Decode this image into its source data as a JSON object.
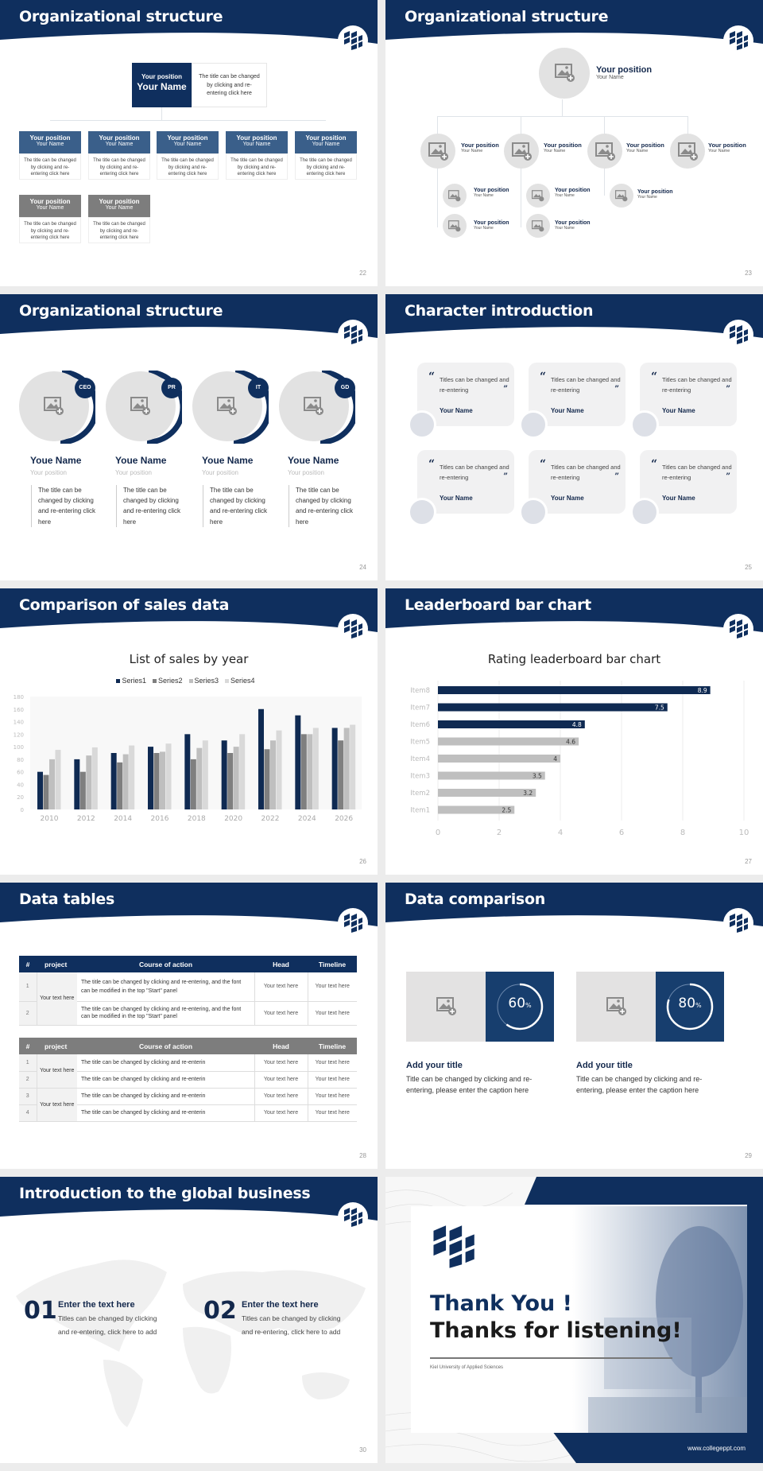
{
  "colors": {
    "navy": "#0f2f5e",
    "steel_blue": "#3a5f8a",
    "gray_header": "#7d7d7d",
    "placeholder_gray": "#e2e2e2",
    "ring_panel": "#173e6e"
  },
  "slides": [
    {
      "number": "22",
      "title": "Organizational structure",
      "top": {
        "position": "Your position",
        "name": "Your Name",
        "description": "The title can be changed by clicking and re-entering click here"
      },
      "cards": [
        {
          "position": "Your position",
          "name": "Your Name",
          "description": "The title can be changed by clicking and re-entering click here",
          "style": "blue"
        },
        {
          "position": "Your position",
          "name": "Your Name",
          "description": "The title can be changed by clicking and re-entering click here",
          "style": "blue"
        },
        {
          "position": "Your position",
          "name": "Your Name",
          "description": "The title can be changed by clicking and re-entering click here",
          "style": "blue"
        },
        {
          "position": "Your position",
          "name": "Your Name",
          "description": "The title can be changed by clicking and re-entering click here",
          "style": "blue"
        },
        {
          "position": "Your position",
          "name": "Your Name",
          "description": "The title can be changed by clicking and re-entering click here",
          "style": "blue"
        },
        {
          "position": "Your position",
          "name": "Your Name",
          "description": "The title can be changed by clicking and re-entering click here",
          "style": "gray"
        },
        {
          "position": "Your position",
          "name": "Your Name",
          "description": "The title can be changed by clicking and re-entering click here",
          "style": "gray"
        }
      ]
    },
    {
      "number": "23",
      "title": "Organizational structure",
      "top": {
        "position": "Your position",
        "name": "Your Name"
      },
      "level2": [
        {
          "position": "Your position",
          "name": "Your Name"
        },
        {
          "position": "Your position",
          "name": "Your Name"
        },
        {
          "position": "Your position",
          "name": "Your Name"
        },
        {
          "position": "Your position",
          "name": "Your Name"
        }
      ],
      "level3": [
        {
          "position": "Your position",
          "name": "Your Name"
        },
        {
          "position": "Your position",
          "name": "Your Name"
        },
        {
          "position": "Your position",
          "name": "Your Name"
        },
        {
          "position": "Your position",
          "name": "Your Name"
        },
        {
          "position": "Your position",
          "name": "Your Name"
        }
      ]
    },
    {
      "number": "24",
      "title": "Organizational structure",
      "people": [
        {
          "badge": "CEO",
          "name": "Youe Name",
          "position": "Your position",
          "description": "The title can be changed by clicking and re-entering click here"
        },
        {
          "badge": "PR",
          "name": "Youe Name",
          "position": "Your position",
          "description": "The title can be changed by clicking and re-entering click here"
        },
        {
          "badge": "IT",
          "name": "Youe Name",
          "position": "Your position",
          "description": "The title can be changed by clicking and re-entering click here"
        },
        {
          "badge": "GD",
          "name": "Youe Name",
          "position": "Your position",
          "description": "The title can be changed by clicking and re-entering click here"
        }
      ]
    },
    {
      "number": "25",
      "title": "Character introduction",
      "quotes": [
        {
          "text": "Titles can be changed and re-entering",
          "name": "Your Name"
        },
        {
          "text": "Titles can be changed and re-entering",
          "name": "Your Name"
        },
        {
          "text": "Titles can be changed and re-entering",
          "name": "Your Name"
        },
        {
          "text": "Titles can be changed and re-entering",
          "name": "Your Name"
        },
        {
          "text": "Titles can be changed and re-entering",
          "name": "Your Name"
        },
        {
          "text": "Titles can be changed and re-entering",
          "name": "Your Name"
        }
      ],
      "open_quote": "“",
      "close_quote": "”"
    },
    {
      "number": "26",
      "title": "Comparison of sales data",
      "chart_title": "List of sales by year",
      "legend": [
        "Series1",
        "Series2",
        "Series3",
        "Series4"
      ]
    },
    {
      "number": "27",
      "title": "Leaderboard bar chart",
      "chart_title": "Rating leaderboard bar chart"
    },
    {
      "number": "28",
      "title": "Data tables",
      "table1": {
        "headers": [
          "#",
          "project",
          "Course of action",
          "Head",
          "Timeline"
        ],
        "project": "Your text here",
        "rows": [
          {
            "num": "1",
            "action": "The title can be changed by clicking and re-entering, and the font can be modified in the top \"Start\" panel",
            "head": "Your text here",
            "timeline": "Your text here"
          },
          {
            "num": "2",
            "action": "The title can be changed by clicking and re-entering, and the font can be modified in the top \"Start\" panel",
            "head": "Your text here",
            "timeline": "Your text here"
          }
        ]
      },
      "table2": {
        "headers": [
          "#",
          "project",
          "Course of action",
          "Head",
          "Timeline"
        ],
        "projects": [
          "Your text here",
          "Your text here"
        ],
        "rows": [
          {
            "num": "1",
            "action": "The title can be changed by clicking and re-enterin",
            "head": "Your text here",
            "timeline": "Your text here"
          },
          {
            "num": "2",
            "action": "The title can be changed by clicking and re-enterin",
            "head": "Your text here",
            "timeline": "Your text here"
          },
          {
            "num": "3",
            "action": "The title can be changed by clicking and re-enterin",
            "head": "Your text here",
            "timeline": "Your text here"
          },
          {
            "num": "4",
            "action": "The title can be changed by clicking and re-enterin",
            "head": "Your text here",
            "timeline": "Your text here"
          }
        ]
      }
    },
    {
      "number": "29",
      "title": "Data comparison",
      "items": [
        {
          "percent": "60",
          "unit": "%",
          "heading": "Add your title",
          "text": "Title can be changed by clicking and re-entering, please enter the caption here"
        },
        {
          "percent": "80",
          "unit": "%",
          "heading": "Add your title",
          "text": "Title can be changed by clicking and re-entering, please enter the caption here"
        }
      ]
    },
    {
      "number": "30",
      "title": "Introduction to the global business",
      "items": [
        {
          "num": "01",
          "heading": "Enter the text here",
          "text": "Titles can be changed by clicking and re-entering, click here to add"
        },
        {
          "num": "02",
          "heading": "Enter the text here",
          "text": "Titles can be changed by clicking and re-entering, click here to add"
        }
      ]
    },
    {
      "title_line1": "Thank You !",
      "title_line2": "Thanks for listening!",
      "institution": "Kiel University of Applied Sciences",
      "website": "www.collegeppt.com"
    }
  ],
  "chart_data": [
    {
      "type": "bar",
      "title": "List of sales by year",
      "categories": [
        "2010",
        "2012",
        "2014",
        "2016",
        "2018",
        "2020",
        "2022",
        "2024",
        "2026"
      ],
      "series": [
        {
          "name": "Series1",
          "color": "#0f2a52",
          "values": [
            60,
            80,
            90,
            100,
            120,
            110,
            160,
            150,
            130
          ]
        },
        {
          "name": "Series2",
          "color": "#7f7f7f",
          "values": [
            55,
            60,
            75,
            90,
            80,
            90,
            96,
            120,
            110
          ]
        },
        {
          "name": "Series3",
          "color": "#bfbfbf",
          "values": [
            80,
            86,
            88,
            92,
            98,
            100,
            110,
            120,
            130
          ]
        },
        {
          "name": "Series4",
          "color": "#d9d9d9",
          "values": [
            95,
            99,
            102,
            105,
            110,
            120,
            126,
            130,
            135
          ]
        }
      ],
      "yticks": [
        0,
        20,
        40,
        60,
        80,
        100,
        120,
        140,
        160,
        180
      ],
      "ylim": [
        0,
        180
      ],
      "legend_position": "top",
      "xlabel": "",
      "ylabel": ""
    },
    {
      "type": "bar",
      "orientation": "horizontal",
      "title": "Rating leaderboard bar chart",
      "categories": [
        "Item8",
        "Item7",
        "Item6",
        "Item5",
        "Item4",
        "Item3",
        "Item2",
        "Item1"
      ],
      "values": [
        8.9,
        7.5,
        4.8,
        4.6,
        4,
        3.5,
        3.2,
        2.5
      ],
      "labels": [
        "8.9",
        "7.5",
        "4.8",
        "4.6",
        "4",
        "3.5",
        "3.2",
        "2.5"
      ],
      "highlight_top": 3,
      "xticks": [
        "0",
        "2",
        "4",
        "6",
        "8",
        "10"
      ],
      "xlim": [
        0,
        10
      ],
      "grid": true
    }
  ]
}
